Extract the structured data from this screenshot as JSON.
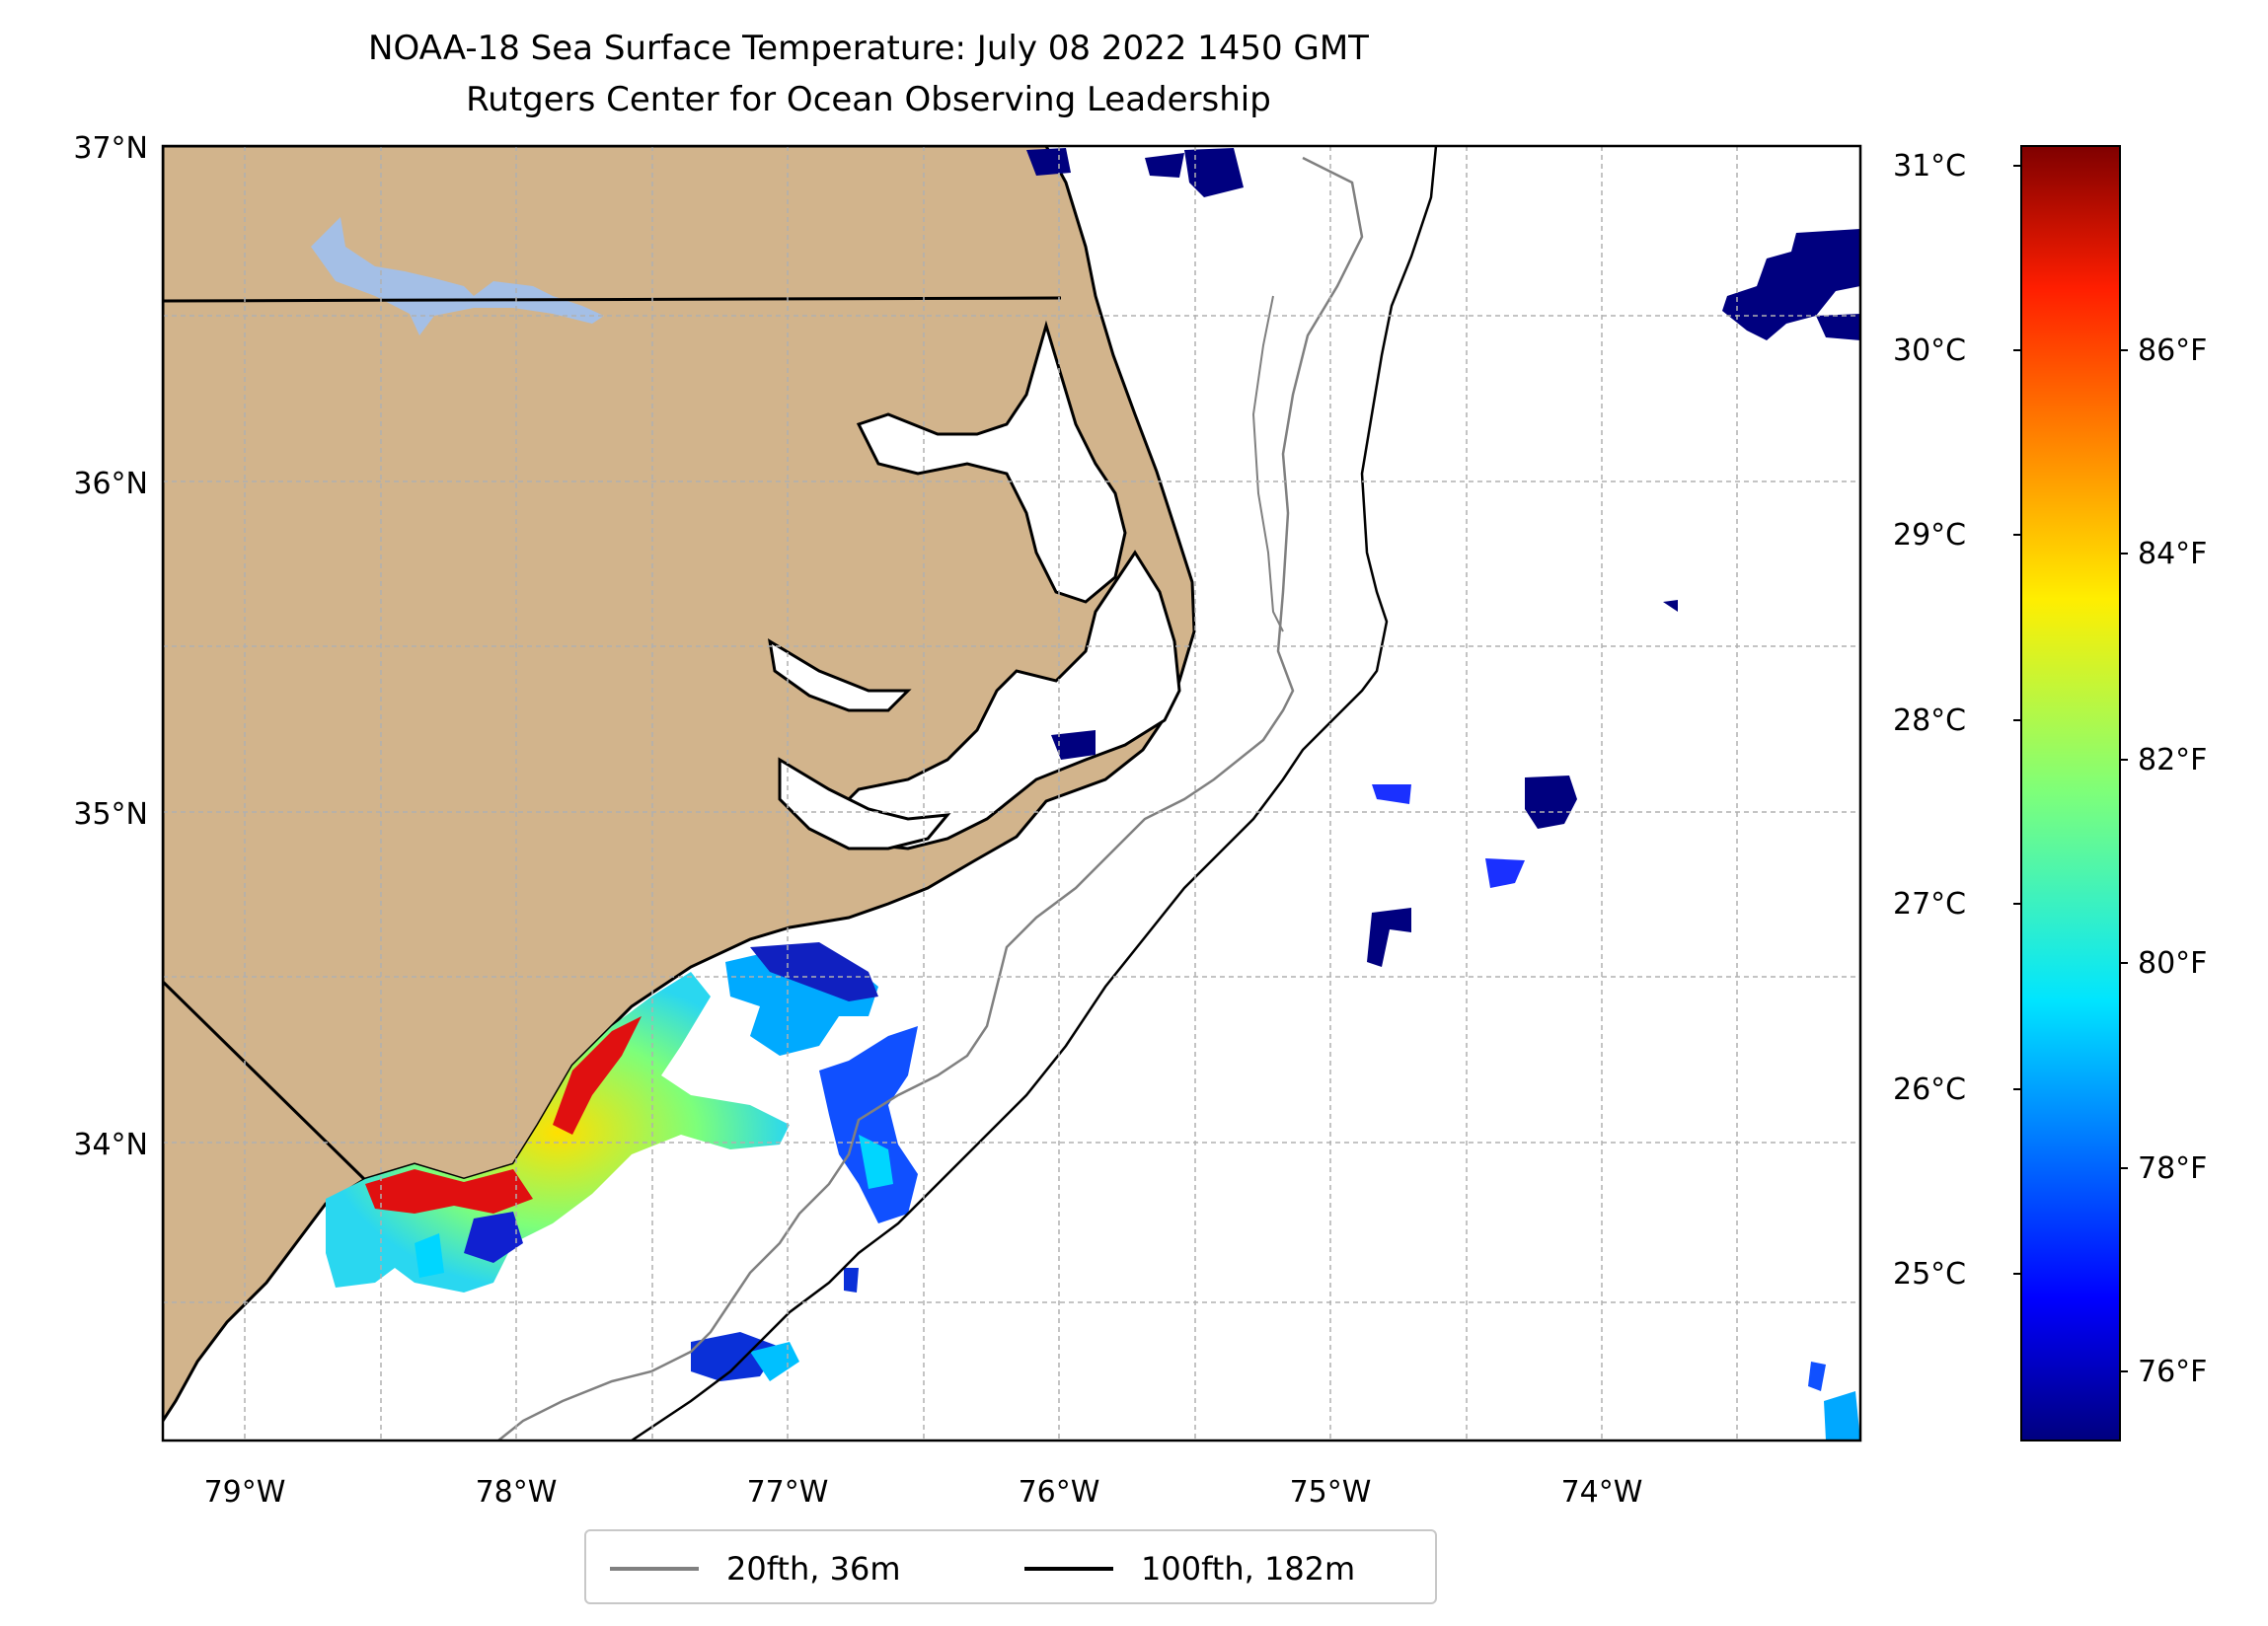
{
  "title": {
    "line1": "NOAA-18 Sea Surface Temperature: July 08 2022 1450 GMT",
    "line2": "Rutgers Center for Ocean Observing Leadership"
  },
  "map": {
    "lon_range": [
      -79.3,
      -73.1
    ],
    "lat_range": [
      33.1,
      37.0
    ],
    "lon_ticks": [
      "79°W",
      "78°W",
      "77°W",
      "76°W",
      "75°W",
      "74°W"
    ],
    "lat_ticks": [
      "37°N",
      "36°N",
      "35°N",
      "34°N"
    ],
    "gridlines": true,
    "colors": {
      "land": "#d2b48c",
      "lakes": "#a4bfe6",
      "coastline": "#000000",
      "isobath_20fth": "#808080",
      "isobath_100fth": "#000000"
    }
  },
  "colorbar": {
    "cmap": "jet",
    "celsius_ticks": [
      "31°C",
      "30°C",
      "29°C",
      "28°C",
      "27°C",
      "26°C",
      "25°C"
    ],
    "fahrenheit_ticks": [
      "86°F",
      "84°F",
      "82°F",
      "80°F",
      "78°F",
      "76°F"
    ],
    "range_c": [
      24.1,
      31.1
    ]
  },
  "legend": {
    "placement": "lower center",
    "items": [
      {
        "label": "20fth, 36m",
        "color": "#808080"
      },
      {
        "label": "100fth, 182m",
        "color": "#000000"
      }
    ]
  }
}
